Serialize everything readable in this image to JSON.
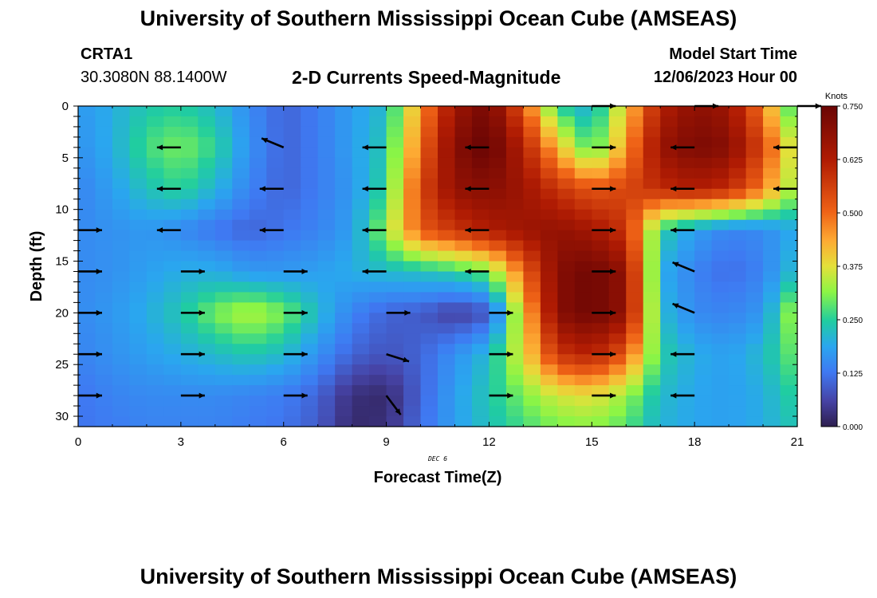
{
  "header": {
    "title": "University of Southern Mississippi Ocean Cube (AMSEAS)",
    "station": "CRTA1",
    "coordinates": "30.3080N  88.1400W",
    "subtitle": "2-D Currents Speed-Magnitude",
    "start_label": "Model Start Time",
    "start_time": "12/06/2023 Hour 00"
  },
  "footer": {
    "title": "University of Southern Mississippi Ocean Cube (AMSEAS)"
  },
  "chart_data": {
    "type": "heatmap",
    "title": "2-D Currents Speed-Magnitude",
    "xlabel": "Forecast Time(Z)",
    "ylabel": "Depth (ft)",
    "date_label": "DEC 6",
    "xlim": [
      0,
      21
    ],
    "ylim": [
      31,
      0
    ],
    "x_ticks": [
      0,
      3,
      6,
      9,
      12,
      15,
      18,
      21
    ],
    "y_ticks": [
      0,
      5,
      10,
      15,
      20,
      25,
      30
    ],
    "x": [
      0,
      1,
      2,
      3,
      4,
      5,
      6,
      7,
      8,
      9,
      10,
      11,
      12,
      13,
      14,
      15,
      16,
      17,
      18,
      19,
      20,
      21
    ],
    "depths": [
      0,
      4,
      8,
      12,
      16,
      20,
      24,
      28,
      31
    ],
    "speed_knots": [
      [
        0.17,
        0.2,
        0.24,
        0.25,
        0.22,
        0.15,
        0.1,
        0.13,
        0.18,
        0.22,
        0.45,
        0.66,
        0.73,
        0.52,
        0.25,
        0.2,
        0.4,
        0.62,
        0.69,
        0.66,
        0.48,
        0.22
      ],
      [
        0.16,
        0.2,
        0.27,
        0.3,
        0.26,
        0.16,
        0.1,
        0.13,
        0.18,
        0.24,
        0.5,
        0.7,
        0.76,
        0.62,
        0.42,
        0.26,
        0.45,
        0.67,
        0.72,
        0.7,
        0.55,
        0.32
      ],
      [
        0.14,
        0.18,
        0.23,
        0.26,
        0.21,
        0.14,
        0.1,
        0.13,
        0.17,
        0.26,
        0.55,
        0.68,
        0.7,
        0.66,
        0.58,
        0.52,
        0.55,
        0.6,
        0.63,
        0.6,
        0.48,
        0.3
      ],
      [
        0.15,
        0.16,
        0.17,
        0.15,
        0.12,
        0.1,
        0.12,
        0.14,
        0.18,
        0.32,
        0.52,
        0.58,
        0.63,
        0.66,
        0.68,
        0.65,
        0.58,
        0.25,
        0.18,
        0.14,
        0.15,
        0.2
      ],
      [
        0.15,
        0.16,
        0.18,
        0.2,
        0.2,
        0.17,
        0.17,
        0.18,
        0.2,
        0.22,
        0.23,
        0.25,
        0.3,
        0.5,
        0.7,
        0.74,
        0.68,
        0.2,
        0.14,
        0.11,
        0.14,
        0.23
      ],
      [
        0.15,
        0.17,
        0.2,
        0.24,
        0.3,
        0.34,
        0.3,
        0.22,
        0.14,
        0.1,
        0.09,
        0.05,
        0.08,
        0.4,
        0.7,
        0.74,
        0.68,
        0.22,
        0.15,
        0.14,
        0.17,
        0.35
      ],
      [
        0.14,
        0.16,
        0.18,
        0.2,
        0.22,
        0.24,
        0.22,
        0.16,
        0.1,
        0.08,
        0.1,
        0.16,
        0.22,
        0.38,
        0.58,
        0.62,
        0.52,
        0.25,
        0.2,
        0.18,
        0.22,
        0.3
      ],
      [
        0.12,
        0.14,
        0.15,
        0.15,
        0.15,
        0.14,
        0.13,
        0.1,
        0.03,
        0.02,
        0.1,
        0.18,
        0.24,
        0.3,
        0.36,
        0.38,
        0.32,
        0.22,
        0.19,
        0.18,
        0.2,
        0.26
      ],
      [
        0.12,
        0.13,
        0.14,
        0.14,
        0.14,
        0.13,
        0.12,
        0.09,
        0.02,
        0.03,
        0.11,
        0.18,
        0.23,
        0.27,
        0.3,
        0.31,
        0.28,
        0.21,
        0.19,
        0.18,
        0.2,
        0.24
      ]
    ],
    "vectors": [
      {
        "x": 0,
        "depth": 12,
        "dir": "E"
      },
      {
        "x": 0,
        "depth": 16,
        "dir": "E"
      },
      {
        "x": 0,
        "depth": 20,
        "dir": "E"
      },
      {
        "x": 0,
        "depth": 24,
        "dir": "E"
      },
      {
        "x": 0,
        "depth": 28,
        "dir": "E"
      },
      {
        "x": 3,
        "depth": 4,
        "dir": "W"
      },
      {
        "x": 3,
        "depth": 8,
        "dir": "W"
      },
      {
        "x": 3,
        "depth": 12,
        "dir": "W"
      },
      {
        "x": 3,
        "depth": 16,
        "dir": "E"
      },
      {
        "x": 3,
        "depth": 20,
        "dir": "E"
      },
      {
        "x": 3,
        "depth": 24,
        "dir": "E"
      },
      {
        "x": 3,
        "depth": 28,
        "dir": "E"
      },
      {
        "x": 6,
        "depth": 4,
        "dir": "WNW"
      },
      {
        "x": 6,
        "depth": 8,
        "dir": "W"
      },
      {
        "x": 6,
        "depth": 12,
        "dir": "W"
      },
      {
        "x": 6,
        "depth": 16,
        "dir": "E"
      },
      {
        "x": 6,
        "depth": 20,
        "dir": "E"
      },
      {
        "x": 6,
        "depth": 24,
        "dir": "E"
      },
      {
        "x": 6,
        "depth": 28,
        "dir": "E"
      },
      {
        "x": 9,
        "depth": 4,
        "dir": "W"
      },
      {
        "x": 9,
        "depth": 8,
        "dir": "W"
      },
      {
        "x": 9,
        "depth": 12,
        "dir": "W"
      },
      {
        "x": 9,
        "depth": 16,
        "dir": "W"
      },
      {
        "x": 9,
        "depth": 20,
        "dir": "E"
      },
      {
        "x": 9,
        "depth": 24,
        "dir": "ESE"
      },
      {
        "x": 9,
        "depth": 28,
        "dir": "SE"
      },
      {
        "x": 12,
        "depth": 4,
        "dir": "W"
      },
      {
        "x": 12,
        "depth": 8,
        "dir": "W"
      },
      {
        "x": 12,
        "depth": 12,
        "dir": "W"
      },
      {
        "x": 12,
        "depth": 16,
        "dir": "W"
      },
      {
        "x": 12,
        "depth": 20,
        "dir": "E"
      },
      {
        "x": 12,
        "depth": 24,
        "dir": "E"
      },
      {
        "x": 12,
        "depth": 28,
        "dir": "E"
      },
      {
        "x": 15,
        "depth": 0,
        "dir": "E"
      },
      {
        "x": 15,
        "depth": 4,
        "dir": "E"
      },
      {
        "x": 15,
        "depth": 8,
        "dir": "E"
      },
      {
        "x": 15,
        "depth": 12,
        "dir": "E"
      },
      {
        "x": 15,
        "depth": 16,
        "dir": "E"
      },
      {
        "x": 15,
        "depth": 20,
        "dir": "E"
      },
      {
        "x": 15,
        "depth": 24,
        "dir": "E"
      },
      {
        "x": 15,
        "depth": 28,
        "dir": "E"
      },
      {
        "x": 18,
        "depth": 0,
        "dir": "E"
      },
      {
        "x": 18,
        "depth": 4,
        "dir": "W"
      },
      {
        "x": 18,
        "depth": 8,
        "dir": "W"
      },
      {
        "x": 18,
        "depth": 12,
        "dir": "W"
      },
      {
        "x": 18,
        "depth": 16,
        "dir": "WNW"
      },
      {
        "x": 18,
        "depth": 20,
        "dir": "WNW"
      },
      {
        "x": 18,
        "depth": 24,
        "dir": "W"
      },
      {
        "x": 18,
        "depth": 28,
        "dir": "W"
      },
      {
        "x": 21,
        "depth": 0,
        "dir": "E"
      },
      {
        "x": 21,
        "depth": 4,
        "dir": "W"
      },
      {
        "x": 21,
        "depth": 8,
        "dir": "W"
      }
    ],
    "colorbar": {
      "label": "Knots",
      "min": 0.0,
      "max": 0.75,
      "ticks": [
        "0.750",
        "0.625",
        "0.500",
        "0.375",
        "0.250",
        "0.125",
        "0.000"
      ]
    }
  }
}
